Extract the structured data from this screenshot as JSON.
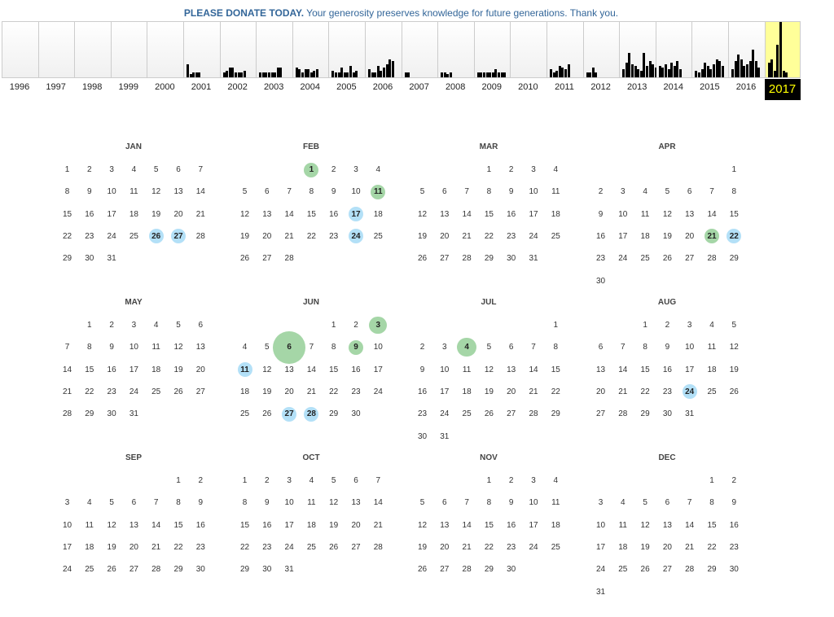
{
  "banner": {
    "strong": "PLEASE DONATE TODAY.",
    "text": " Your generosity preserves knowledge for future generations. Thank you."
  },
  "years": [
    "1996",
    "1997",
    "1998",
    "1999",
    "2000",
    "2001",
    "2002",
    "2003",
    "2004",
    "2005",
    "2006",
    "2007",
    "2008",
    "2009",
    "2010",
    "2011",
    "2012",
    "2013",
    "2014",
    "2015",
    "2016",
    "2017"
  ],
  "current_year": "2017",
  "months": [
    "JAN",
    "FEB",
    "MAR",
    "APR",
    "MAY",
    "JUN",
    "JUL",
    "AUG",
    "SEP",
    "OCT",
    "NOV",
    "DEC"
  ],
  "month_first_weekday": [
    0,
    3,
    3,
    6,
    1,
    4,
    6,
    2,
    5,
    0,
    3,
    5
  ],
  "month_days": [
    31,
    28,
    31,
    30,
    31,
    30,
    31,
    31,
    30,
    31,
    30,
    31
  ],
  "highlights": [
    {
      "month": 0,
      "day": 26,
      "color": "blue",
      "size": 1
    },
    {
      "month": 0,
      "day": 27,
      "color": "blue",
      "size": 1
    },
    {
      "month": 1,
      "day": 1,
      "color": "green",
      "size": 1
    },
    {
      "month": 1,
      "day": 11,
      "color": "green",
      "size": 1
    },
    {
      "month": 1,
      "day": 17,
      "color": "blue",
      "size": 1
    },
    {
      "month": 1,
      "day": 24,
      "color": "blue",
      "size": 1
    },
    {
      "month": 3,
      "day": 21,
      "color": "green",
      "size": 1
    },
    {
      "month": 3,
      "day": 22,
      "color": "blue",
      "size": 1
    },
    {
      "month": 5,
      "day": 3,
      "color": "green",
      "size": 1.2
    },
    {
      "month": 5,
      "day": 6,
      "color": "green",
      "size": 2.2
    },
    {
      "month": 5,
      "day": 9,
      "color": "green",
      "size": 1
    },
    {
      "month": 5,
      "day": 11,
      "color": "blue",
      "size": 1
    },
    {
      "month": 5,
      "day": 27,
      "color": "blue",
      "size": 1
    },
    {
      "month": 5,
      "day": 28,
      "color": "blue",
      "size": 1
    },
    {
      "month": 6,
      "day": 4,
      "color": "green",
      "size": 1.3
    },
    {
      "month": 7,
      "day": 24,
      "color": "blue",
      "size": 1
    }
  ],
  "bars": [
    [],
    [],
    [],
    [],
    [],
    [
      16,
      4,
      6,
      6,
      6
    ],
    [
      6,
      8,
      12,
      12,
      6,
      6,
      6,
      8
    ],
    [
      6,
      6,
      6,
      6,
      6,
      6,
      12,
      12
    ],
    [
      12,
      10,
      6,
      10,
      10,
      6,
      8,
      10
    ],
    [
      8,
      6,
      6,
      12,
      6,
      6,
      14,
      6,
      8
    ],
    [
      10,
      6,
      6,
      14,
      8,
      12,
      16,
      22,
      20
    ],
    [
      6,
      6
    ],
    [
      6,
      6,
      4,
      6
    ],
    [
      6,
      6,
      6,
      6,
      6,
      6,
      10,
      6,
      6,
      6
    ],
    [],
    [
      10,
      6,
      8,
      14,
      12,
      10,
      16
    ],
    [
      6,
      6,
      12,
      6
    ],
    [
      10,
      18,
      30,
      16,
      14,
      10,
      8,
      30,
      14,
      20,
      16,
      12
    ],
    [
      14,
      12,
      16,
      10,
      18,
      14,
      20,
      10
    ],
    [
      8,
      6,
      10,
      18,
      14,
      10,
      16,
      22,
      20,
      14
    ],
    [
      10,
      20,
      28,
      22,
      14,
      16,
      20,
      34,
      20,
      12
    ],
    [
      18,
      22,
      8,
      40,
      68,
      8,
      6
    ]
  ]
}
